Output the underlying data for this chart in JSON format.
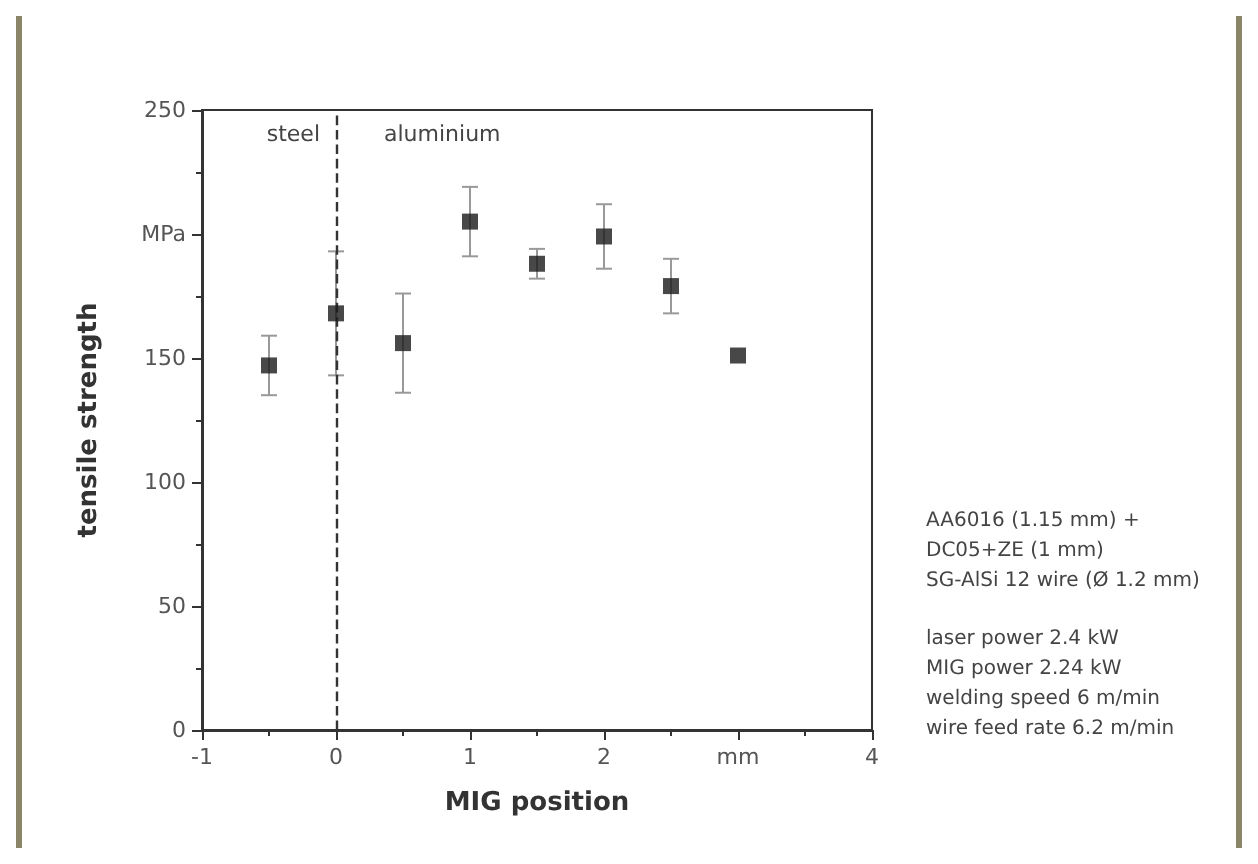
{
  "chart_data": {
    "type": "scatter",
    "xlabel": "MIG position",
    "ylabel": "tensile strength",
    "x": [
      -0.5,
      0,
      0.5,
      1,
      1.5,
      2,
      2.5,
      3
    ],
    "values": [
      147,
      168,
      156,
      205,
      188,
      199,
      179,
      151
    ],
    "errors": [
      [
        135,
        159
      ],
      [
        143,
        193
      ],
      [
        136,
        176
      ],
      [
        191,
        219
      ],
      [
        182,
        194
      ],
      [
        186,
        212
      ],
      [
        168,
        190
      ],
      null
    ],
    "color": "#1a1a1a",
    "marker": "square",
    "grid": false,
    "xlim": [
      -1,
      4
    ],
    "xticks": [
      -1,
      0,
      1,
      2,
      {
        "value": 3,
        "label": "mm"
      },
      4
    ],
    "ylim": [
      0,
      250
    ],
    "yticks": [
      0,
      50,
      100,
      150,
      {
        "value": 200,
        "label": "MPa"
      },
      250
    ],
    "ref_lines": [
      {
        "axis": "x",
        "value": 0,
        "line_style": "dashed",
        "color": "#333333"
      }
    ],
    "annotations": [
      "steel",
      "aluminium",
      "AA6016 (1.15 mm) +\nDC05+ZE (1 mm)\nSG-AlSi 12 wire (Ø 1.2 mm)",
      "laser power 2.4 kW\nMIG power 2.24 kW\nwelding speed 6 m/min\nwire feed rate 6.2 m/min"
    ]
  }
}
